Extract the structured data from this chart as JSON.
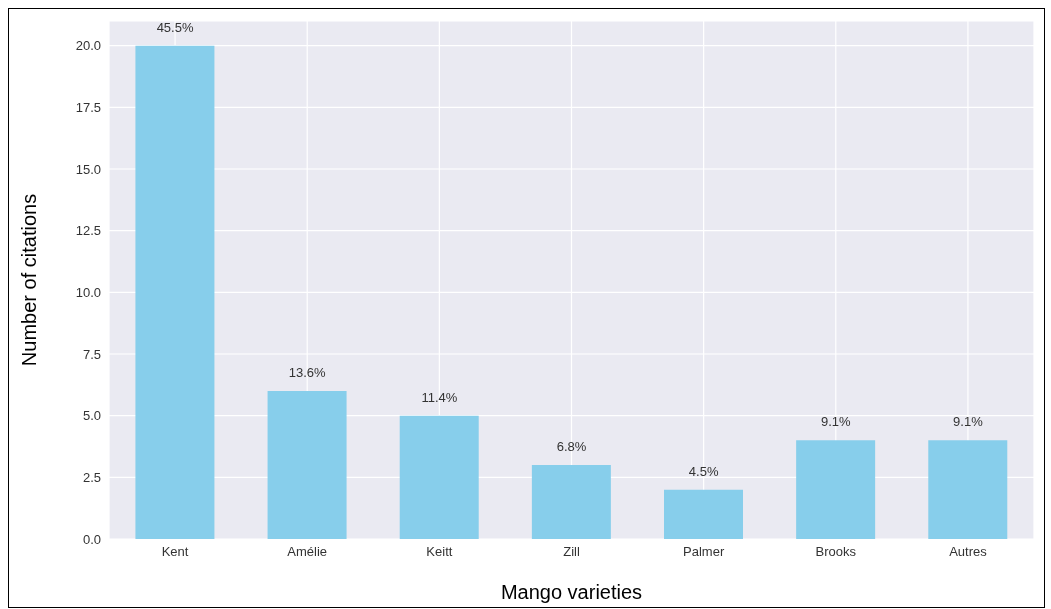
{
  "chart_data": {
    "type": "bar",
    "xlabel": "Mango varieties",
    "ylabel": "Number of citations",
    "categories": [
      "Kent",
      "Amélie",
      "Keitt",
      "Zill",
      "Palmer",
      "Brooks",
      "Autres"
    ],
    "values": [
      20,
      6,
      5,
      3,
      2,
      4,
      4
    ],
    "annotations": [
      {
        "text": "45.5%",
        "x": "Kent",
        "y": 20
      },
      {
        "text": "13.6%",
        "x": "Amélie",
        "y": 6
      },
      {
        "text": "11.4%",
        "x": "Keitt",
        "y": 5
      },
      {
        "text": "6.8%",
        "x": "Zill",
        "y": 3
      },
      {
        "text": "4.5%",
        "x": "Palmer",
        "y": 2
      },
      {
        "text": "9.1%",
        "x": "Brooks",
        "y": 4
      },
      {
        "text": "9.1%",
        "x": "Autres",
        "y": 4
      }
    ],
    "color": "#87ceeb",
    "ylim": [
      0,
      21
    ],
    "yticks": [
      {
        "value": 0,
        "label": "0.0"
      },
      {
        "value": 2.5,
        "label": "2.5"
      },
      {
        "value": 5,
        "label": "5.0"
      },
      {
        "value": 7.5,
        "label": "7.5"
      },
      {
        "value": 10,
        "label": "10.0"
      },
      {
        "value": 12.5,
        "label": "12.5"
      },
      {
        "value": 15,
        "label": "15.0"
      },
      {
        "value": 17.5,
        "label": "17.5"
      },
      {
        "value": 20,
        "label": "20.0"
      }
    ],
    "grid": true,
    "legend": false
  }
}
